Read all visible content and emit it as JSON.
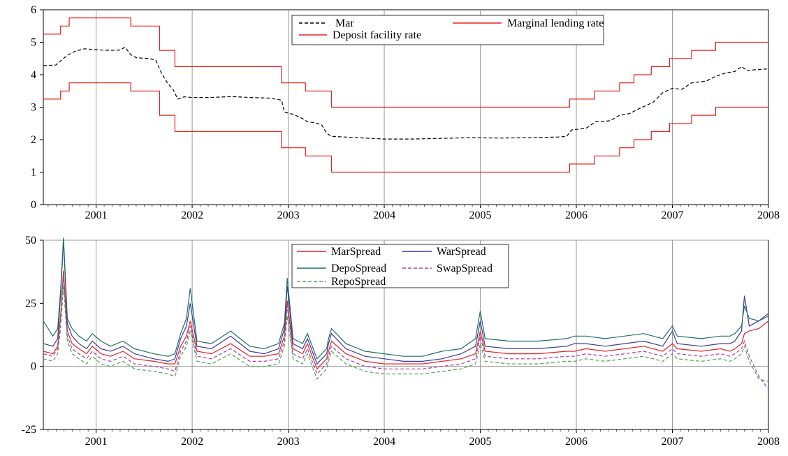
{
  "chart_data": [
    {
      "type": "line",
      "xlim": [
        2000.45,
        2008.0
      ],
      "ylim": [
        0,
        6
      ],
      "x_ticks": [
        "2001",
        "2002",
        "2003",
        "2004",
        "2005",
        "2006",
        "2007",
        "2008"
      ],
      "y_ticks": [
        "0",
        "1",
        "2",
        "3",
        "4",
        "5",
        "6"
      ],
      "grid": "vertical at year ticks",
      "legend": {
        "placement": "top-center",
        "entries": [
          "Mar",
          "Marginal lending rate",
          "Deposit facility rate"
        ]
      },
      "series": [
        {
          "name": "Mar",
          "color": "#000000",
          "style": "dashed",
          "points": [
            [
              2000.45,
              4.28
            ],
            [
              2000.58,
              4.3
            ],
            [
              2000.64,
              4.45
            ],
            [
              2000.7,
              4.6
            ],
            [
              2000.78,
              4.72
            ],
            [
              2000.88,
              4.8
            ],
            [
              2000.95,
              4.78
            ],
            [
              2001.05,
              4.76
            ],
            [
              2001.15,
              4.75
            ],
            [
              2001.25,
              4.76
            ],
            [
              2001.3,
              4.85
            ],
            [
              2001.36,
              4.62
            ],
            [
              2001.42,
              4.52
            ],
            [
              2001.55,
              4.5
            ],
            [
              2001.62,
              4.45
            ],
            [
              2001.68,
              4.05
            ],
            [
              2001.74,
              3.75
            ],
            [
              2001.8,
              3.55
            ],
            [
              2001.85,
              3.25
            ],
            [
              2001.92,
              3.32
            ],
            [
              2002.0,
              3.3
            ],
            [
              2002.2,
              3.3
            ],
            [
              2002.4,
              3.33
            ],
            [
              2002.6,
              3.3
            ],
            [
              2002.8,
              3.28
            ],
            [
              2002.93,
              3.22
            ],
            [
              2002.96,
              2.85
            ],
            [
              2003.05,
              2.78
            ],
            [
              2003.15,
              2.65
            ],
            [
              2003.2,
              2.55
            ],
            [
              2003.28,
              2.52
            ],
            [
              2003.35,
              2.45
            ],
            [
              2003.4,
              2.2
            ],
            [
              2003.45,
              2.1
            ],
            [
              2003.6,
              2.08
            ],
            [
              2003.8,
              2.05
            ],
            [
              2004.0,
              2.02
            ],
            [
              2004.3,
              2.02
            ],
            [
              2004.6,
              2.04
            ],
            [
              2004.9,
              2.06
            ],
            [
              2005.2,
              2.05
            ],
            [
              2005.5,
              2.06
            ],
            [
              2005.8,
              2.08
            ],
            [
              2005.9,
              2.1
            ],
            [
              2005.95,
              2.3
            ],
            [
              2006.1,
              2.35
            ],
            [
              2006.2,
              2.55
            ],
            [
              2006.35,
              2.58
            ],
            [
              2006.45,
              2.75
            ],
            [
              2006.55,
              2.8
            ],
            [
              2006.65,
              2.95
            ],
            [
              2006.8,
              3.15
            ],
            [
              2006.9,
              3.45
            ],
            [
              2007.0,
              3.58
            ],
            [
              2007.1,
              3.55
            ],
            [
              2007.2,
              3.75
            ],
            [
              2007.35,
              3.8
            ],
            [
              2007.45,
              3.95
            ],
            [
              2007.55,
              4.05
            ],
            [
              2007.65,
              4.1
            ],
            [
              2007.72,
              4.25
            ],
            [
              2007.78,
              4.12
            ],
            [
              2007.85,
              4.15
            ],
            [
              2008.0,
              4.18
            ]
          ]
        },
        {
          "name": "Marginal lending rate",
          "color": "#e8231f",
          "style": "solid",
          "points": [
            [
              2000.45,
              5.25
            ],
            [
              2000.63,
              5.25
            ],
            [
              2000.63,
              5.5
            ],
            [
              2000.72,
              5.5
            ],
            [
              2000.72,
              5.75
            ],
            [
              2001.36,
              5.75
            ],
            [
              2001.36,
              5.5
            ],
            [
              2001.66,
              5.5
            ],
            [
              2001.66,
              4.75
            ],
            [
              2001.82,
              4.75
            ],
            [
              2001.82,
              4.25
            ],
            [
              2002.93,
              4.25
            ],
            [
              2002.93,
              3.75
            ],
            [
              2003.18,
              3.75
            ],
            [
              2003.18,
              3.5
            ],
            [
              2003.45,
              3.5
            ],
            [
              2003.45,
              3.0
            ],
            [
              2005.93,
              3.0
            ],
            [
              2005.93,
              3.25
            ],
            [
              2006.19,
              3.25
            ],
            [
              2006.19,
              3.5
            ],
            [
              2006.45,
              3.5
            ],
            [
              2006.45,
              3.75
            ],
            [
              2006.6,
              3.75
            ],
            [
              2006.6,
              4.0
            ],
            [
              2006.78,
              4.0
            ],
            [
              2006.78,
              4.25
            ],
            [
              2006.97,
              4.25
            ],
            [
              2006.97,
              4.5
            ],
            [
              2007.2,
              4.5
            ],
            [
              2007.2,
              4.75
            ],
            [
              2007.45,
              4.75
            ],
            [
              2007.45,
              5.0
            ],
            [
              2008.0,
              5.0
            ]
          ]
        },
        {
          "name": "Deposit facility rate",
          "color": "#e8231f",
          "style": "solid",
          "points": [
            [
              2000.45,
              3.25
            ],
            [
              2000.63,
              3.25
            ],
            [
              2000.63,
              3.5
            ],
            [
              2000.72,
              3.5
            ],
            [
              2000.72,
              3.75
            ],
            [
              2001.36,
              3.75
            ],
            [
              2001.36,
              3.5
            ],
            [
              2001.66,
              3.5
            ],
            [
              2001.66,
              2.75
            ],
            [
              2001.82,
              2.75
            ],
            [
              2001.82,
              2.25
            ],
            [
              2002.93,
              2.25
            ],
            [
              2002.93,
              1.75
            ],
            [
              2003.18,
              1.75
            ],
            [
              2003.18,
              1.5
            ],
            [
              2003.45,
              1.5
            ],
            [
              2003.45,
              1.0
            ],
            [
              2005.93,
              1.0
            ],
            [
              2005.93,
              1.25
            ],
            [
              2006.19,
              1.25
            ],
            [
              2006.19,
              1.5
            ],
            [
              2006.45,
              1.5
            ],
            [
              2006.45,
              1.75
            ],
            [
              2006.6,
              1.75
            ],
            [
              2006.6,
              2.0
            ],
            [
              2006.78,
              2.0
            ],
            [
              2006.78,
              2.25
            ],
            [
              2006.97,
              2.25
            ],
            [
              2006.97,
              2.5
            ],
            [
              2007.2,
              2.5
            ],
            [
              2007.2,
              2.75
            ],
            [
              2007.45,
              2.75
            ],
            [
              2007.45,
              3.0
            ],
            [
              2008.0,
              3.0
            ]
          ]
        }
      ]
    },
    {
      "type": "line",
      "xlim": [
        2000.45,
        2008.0
      ],
      "ylim": [
        -25,
        50
      ],
      "x_ticks": [
        "2001",
        "2002",
        "2003",
        "2004",
        "2005",
        "2006",
        "2007",
        "2008"
      ],
      "y_ticks": [
        "-25",
        "0",
        "25",
        "50"
      ],
      "grid": "vertical at year ticks, horizontal at 0 and 50",
      "legend": {
        "placement": "top-center",
        "entries": [
          "MarSpread",
          "WarSpread",
          "DepoSpread",
          "SwapSpread",
          "RepoSpread"
        ]
      },
      "x": [
        2000.45,
        2000.55,
        2000.6,
        2000.63,
        2000.66,
        2000.7,
        2000.75,
        2000.82,
        2000.9,
        2000.96,
        2001.05,
        2001.15,
        2001.28,
        2001.4,
        2001.6,
        2001.75,
        2001.82,
        2001.88,
        2001.94,
        2001.98,
        2002.05,
        2002.2,
        2002.4,
        2002.6,
        2002.75,
        2002.9,
        2002.96,
        2002.99,
        2003.05,
        2003.15,
        2003.2,
        2003.3,
        2003.4,
        2003.42,
        2003.45,
        2003.6,
        2003.8,
        2004.0,
        2004.2,
        2004.4,
        2004.6,
        2004.8,
        2004.95,
        2005.0,
        2005.05,
        2005.3,
        2005.6,
        2005.9,
        2005.98,
        2006.1,
        2006.3,
        2006.5,
        2006.7,
        2006.9,
        2007.0,
        2007.05,
        2007.3,
        2007.5,
        2007.6,
        2007.65,
        2007.72,
        2007.75,
        2007.8,
        2007.9,
        2008.0
      ],
      "series": [
        {
          "name": "MarSpread",
          "color": "#e3232a",
          "style": "solid",
          "values": [
            6,
            5,
            8,
            20,
            38,
            14,
            9,
            7,
            5,
            8,
            5,
            4,
            6,
            3,
            2,
            1,
            1,
            8,
            12,
            18,
            6,
            5,
            9,
            4,
            4,
            5,
            12,
            26,
            7,
            5,
            9,
            -1,
            3,
            6,
            10,
            5,
            2,
            1,
            1,
            1,
            2,
            3,
            5,
            14,
            6,
            5,
            5,
            6,
            6,
            7,
            6,
            7,
            8,
            6,
            9,
            7,
            6,
            7,
            6,
            7,
            9,
            13,
            14,
            15,
            18
          ]
        },
        {
          "name": "WarSpread",
          "color": "#3b3b9c",
          "style": "solid",
          "values": [
            9,
            8,
            11,
            28,
            50,
            17,
            12,
            9,
            7,
            10,
            7,
            6,
            8,
            5,
            3,
            2,
            3,
            11,
            16,
            25,
            8,
            7,
            12,
            6,
            5,
            7,
            15,
            32,
            9,
            7,
            11,
            1,
            5,
            9,
            13,
            7,
            4,
            3,
            2,
            2,
            3,
            5,
            8,
            18,
            8,
            7,
            7,
            8,
            9,
            9,
            8,
            9,
            10,
            8,
            14,
            9,
            8,
            9,
            9,
            10,
            14,
            28,
            16,
            18,
            21
          ]
        },
        {
          "name": "DepoSpread",
          "color": "#1f6f6a",
          "style": "solid",
          "values": [
            18,
            12,
            15,
            30,
            51,
            19,
            15,
            12,
            10,
            13,
            10,
            8,
            10,
            7,
            5,
            4,
            5,
            13,
            19,
            31,
            10,
            9,
            14,
            8,
            7,
            9,
            17,
            35,
            11,
            9,
            13,
            3,
            7,
            11,
            15,
            9,
            6,
            5,
            4,
            4,
            6,
            7,
            11,
            22,
            11,
            10,
            10,
            11,
            12,
            12,
            11,
            12,
            13,
            11,
            16,
            12,
            11,
            12,
            12,
            13,
            16,
            24,
            19,
            18,
            20
          ]
        },
        {
          "name": "SwapSpread",
          "color": "#b03aa0",
          "style": "dashed",
          "values": [
            5,
            4,
            7,
            18,
            36,
            12,
            7,
            5,
            3,
            6,
            3,
            2,
            4,
            1,
            0,
            -1,
            -2,
            6,
            10,
            16,
            4,
            3,
            7,
            2,
            2,
            3,
            10,
            24,
            5,
            3,
            7,
            -3,
            1,
            4,
            8,
            3,
            0,
            -1,
            -1,
            -1,
            0,
            1,
            3,
            12,
            4,
            3,
            3,
            4,
            4,
            5,
            4,
            5,
            6,
            4,
            7,
            5,
            4,
            5,
            4,
            5,
            7,
            10,
            4,
            -4,
            -9
          ]
        },
        {
          "name": "RepoSpread",
          "color": "#47a84a",
          "style": "dashed",
          "values": [
            3,
            2,
            5,
            15,
            32,
            10,
            5,
            3,
            1,
            4,
            1,
            0,
            2,
            -1,
            -2,
            -3,
            -4,
            4,
            8,
            14,
            2,
            1,
            5,
            0,
            0,
            1,
            8,
            20,
            3,
            1,
            5,
            -5,
            -1,
            2,
            6,
            1,
            -2,
            -3,
            -3,
            -3,
            -2,
            -1,
            1,
            9,
            2,
            1,
            1,
            2,
            2,
            3,
            2,
            3,
            4,
            2,
            5,
            3,
            2,
            3,
            2,
            3,
            5,
            8,
            2,
            -5,
            -6
          ]
        }
      ]
    }
  ]
}
